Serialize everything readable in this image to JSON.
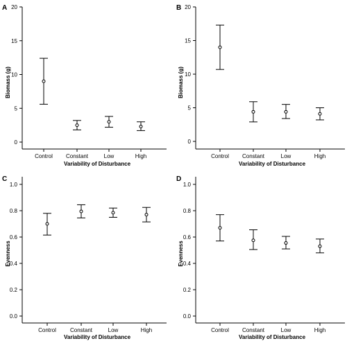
{
  "chart_data": [
    {
      "type": "scatter",
      "panel": "A",
      "xlabel": "Variability of Disturbance",
      "ylabel": "Biomass (g)",
      "categories": [
        "Control",
        "Constant",
        "Low",
        "High"
      ],
      "yticks": [
        "0",
        "5",
        "10",
        "15",
        "20"
      ],
      "ylim": [
        0,
        20.5
      ],
      "series": [
        {
          "values": [
            9.0,
            2.5,
            3.0,
            2.3
          ],
          "lower": [
            5.6,
            1.8,
            2.2,
            1.7
          ],
          "upper": [
            12.4,
            3.2,
            3.8,
            3.0
          ]
        }
      ],
      "grid": false
    },
    {
      "type": "scatter",
      "panel": "B",
      "xlabel": "Variability of Disturbance",
      "ylabel": "Biomass (g)",
      "categories": [
        "Control",
        "Constant",
        "Low",
        "High"
      ],
      "yticks": [
        "0",
        "5",
        "10",
        "15",
        "20"
      ],
      "ylim": [
        0,
        20.5
      ],
      "series": [
        {
          "values": [
            14.0,
            4.4,
            4.4,
            4.1
          ],
          "lower": [
            10.7,
            2.9,
            3.4,
            3.2
          ],
          "upper": [
            17.3,
            5.9,
            5.5,
            5.0
          ]
        }
      ],
      "grid": false
    },
    {
      "type": "scatter",
      "panel": "C",
      "xlabel": "Variability of Disturbance",
      "ylabel": "Evenness",
      "categories": [
        "Control",
        "Constant",
        "Low",
        "High"
      ],
      "yticks": [
        "0.0",
        "0.2",
        "0.4",
        "0.6",
        "0.8",
        "1.0"
      ],
      "ylim": [
        0,
        1.05
      ],
      "series": [
        {
          "values": [
            0.7,
            0.795,
            0.785,
            0.77
          ],
          "lower": [
            0.615,
            0.745,
            0.75,
            0.715
          ],
          "upper": [
            0.78,
            0.845,
            0.82,
            0.825
          ]
        }
      ],
      "grid": false
    },
    {
      "type": "scatter",
      "panel": "D",
      "xlabel": "Variability of Disturbance",
      "ylabel": "Evenness",
      "categories": [
        "Control",
        "Constant",
        "Low",
        "High"
      ],
      "yticks": [
        "0.0",
        "0.2",
        "0.4",
        "0.6",
        "0.8",
        "1.0"
      ],
      "ylim": [
        0,
        1.05
      ],
      "series": [
        {
          "values": [
            0.67,
            0.575,
            0.555,
            0.53
          ],
          "lower": [
            0.57,
            0.505,
            0.51,
            0.48
          ],
          "upper": [
            0.77,
            0.655,
            0.605,
            0.585
          ]
        }
      ],
      "grid": false
    }
  ]
}
